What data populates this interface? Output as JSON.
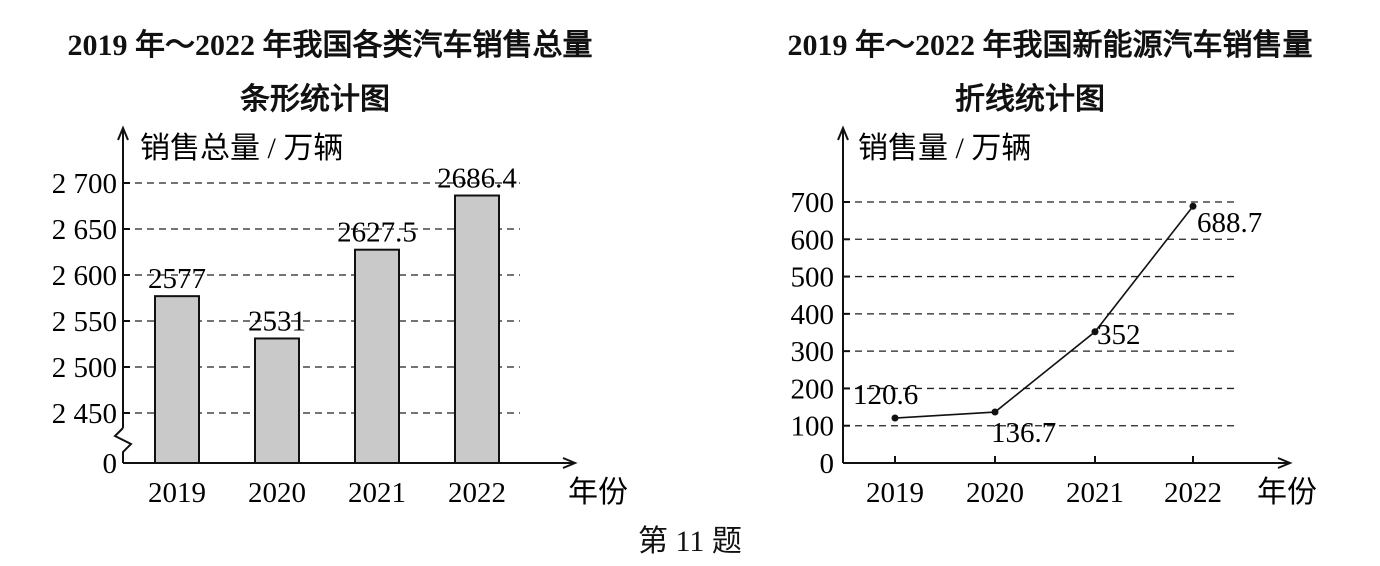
{
  "caption": "第 11 题",
  "chart_data": [
    {
      "type": "bar",
      "title": "2019 年～2022 年我国各类汽车销售总量",
      "subtitle": "条形统计图",
      "xlabel": "年份",
      "ylabel": "销售总量 / 万辆",
      "categories": [
        "2019",
        "2020",
        "2021",
        "2022"
      ],
      "values": [
        2577,
        2531,
        2627.5,
        2686.4
      ],
      "value_labels": [
        "2577",
        "2531",
        "2627.5",
        "2686.4"
      ],
      "ylim": [
        2400,
        2700
      ],
      "yticks": [
        2450,
        2500,
        2550,
        2600,
        2650,
        2700
      ],
      "ytick_labels": [
        "2 450",
        "2 500",
        "2 550",
        "2 600",
        "2 650",
        "2 700"
      ],
      "axis_break": true,
      "origin_label": "0",
      "grid": true,
      "bar_color": "#c9c9c9"
    },
    {
      "type": "line",
      "title": "2019 年～2022 年我国新能源汽车销售量",
      "subtitle": "折线统计图",
      "xlabel": "年份",
      "ylabel": "销售量 / 万辆",
      "categories": [
        "2019",
        "2020",
        "2021",
        "2022"
      ],
      "values": [
        120.6,
        136.7,
        352,
        688.7
      ],
      "value_labels": [
        "120.6",
        "136.7",
        "352",
        "688.7"
      ],
      "ylim": [
        0,
        700
      ],
      "yticks": [
        0,
        100,
        200,
        300,
        400,
        500,
        600,
        700
      ],
      "ytick_labels": [
        "0",
        "100",
        "200",
        "300",
        "400",
        "500",
        "600",
        "700"
      ],
      "grid": true
    }
  ]
}
